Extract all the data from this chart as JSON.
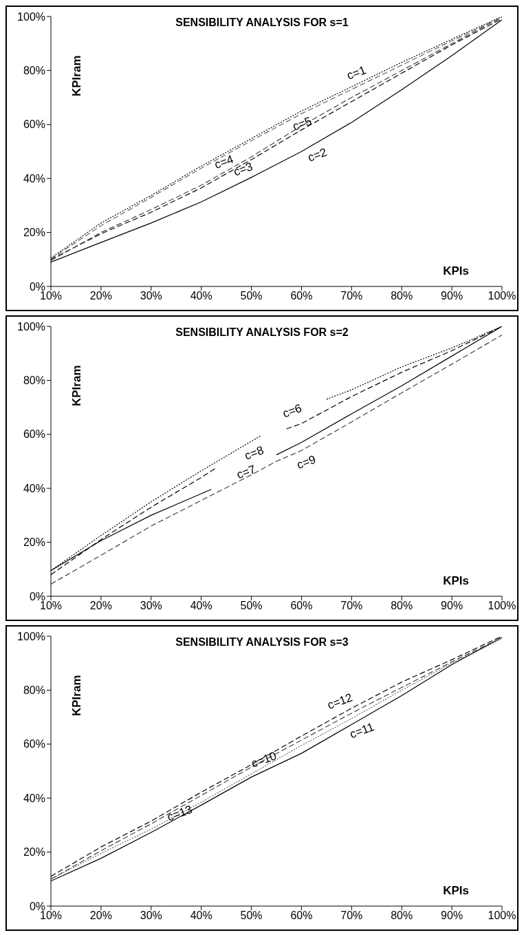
{
  "chart_data": [
    {
      "type": "line",
      "title": "SENSIBILITY ANALYSIS FOR s=1",
      "xlabel": "KPIs",
      "ylabel": "KPIram",
      "xlim": [
        10,
        100
      ],
      "ylim": [
        0,
        100
      ],
      "xticks": [
        {
          "value": 10,
          "label": "10%"
        },
        {
          "value": 20,
          "label": "20%"
        },
        {
          "value": 30,
          "label": "30%"
        },
        {
          "value": 40,
          "label": "40%"
        },
        {
          "value": 50,
          "label": "50%"
        },
        {
          "value": 60,
          "label": "60%"
        },
        {
          "value": 70,
          "label": "70%"
        },
        {
          "value": 80,
          "label": "80%"
        },
        {
          "value": 90,
          "label": "90%"
        },
        {
          "value": 100,
          "label": "100%"
        }
      ],
      "yticks": [
        {
          "value": 0,
          "label": "0%"
        },
        {
          "value": 20,
          "label": "20%"
        },
        {
          "value": 40,
          "label": "40%"
        },
        {
          "value": 60,
          "label": "60%"
        },
        {
          "value": 80,
          "label": "80%"
        },
        {
          "value": 100,
          "label": "100%"
        }
      ],
      "grid": false,
      "legend": false,
      "marker": "none",
      "series": [
        {
          "color": "#000000",
          "line_style": "dotted",
          "x": [
            10,
            20,
            30,
            40,
            50,
            60,
            70,
            80,
            90,
            100
          ],
          "values": [
            10.5,
            23.5,
            33.7,
            44.6,
            54.8,
            65,
            74,
            83,
            91.6,
            100
          ]
        },
        {
          "color": "#000000",
          "line_style": "solid",
          "x": [
            10,
            20,
            30,
            40,
            50,
            60,
            70,
            80,
            90,
            100
          ],
          "values": [
            9,
            16.3,
            23.5,
            31.3,
            40.4,
            50,
            60.8,
            72.9,
            85.5,
            98.8
          ]
        },
        {
          "color": "#000000",
          "line_style": "dashed",
          "x": [
            10,
            20,
            30,
            40,
            50,
            60,
            70,
            80,
            90,
            100
          ],
          "values": [
            10,
            19.5,
            27.5,
            36.5,
            47,
            58,
            68.5,
            79,
            89.5,
            99.2
          ]
        },
        {
          "color": "#666666",
          "line_style": "dashed",
          "x": [
            10,
            20,
            30,
            40,
            50,
            60,
            70,
            80,
            90,
            100
          ],
          "values": [
            10.2,
            22.5,
            33,
            43.8,
            54,
            64,
            73,
            82,
            91,
            99.7
          ]
        },
        {
          "color": "#444444",
          "line_style": "dashed",
          "x": [
            10,
            20,
            30,
            40,
            50,
            60,
            70,
            80,
            90,
            100
          ],
          "values": [
            9.6,
            20,
            28.5,
            37.5,
            48,
            59.5,
            70,
            80,
            90,
            99.8
          ]
        }
      ],
      "annotations": [
        {
          "text": "c=1",
          "x": 70,
          "y": 74
        },
        {
          "text": "c=2",
          "x": 60,
          "y": 50
        },
        {
          "text": "c=3",
          "x": 50,
          "y": 47
        },
        {
          "text": "c=4",
          "x": 40,
          "y": 43.8
        },
        {
          "text": "c=5",
          "x": 60,
          "y": 59.5
        }
      ]
    },
    {
      "type": "line",
      "title": "SENSIBILITY ANALYSIS FOR s=2",
      "xlabel": "KPIs",
      "ylabel": "KPIram",
      "xlim": [
        10,
        100
      ],
      "ylim": [
        0,
        100
      ],
      "xticks": [
        {
          "value": 10,
          "label": "10%"
        },
        {
          "value": 20,
          "label": "20%"
        },
        {
          "value": 30,
          "label": "30%"
        },
        {
          "value": 40,
          "label": "40%"
        },
        {
          "value": 50,
          "label": "50%"
        },
        {
          "value": 60,
          "label": "60%"
        },
        {
          "value": 70,
          "label": "70%"
        },
        {
          "value": 80,
          "label": "80%"
        },
        {
          "value": 90,
          "label": "90%"
        },
        {
          "value": 100,
          "label": "100%"
        }
      ],
      "yticks": [
        {
          "value": 0,
          "label": "0%"
        },
        {
          "value": 20,
          "label": "20%"
        },
        {
          "value": 40,
          "label": "40%"
        },
        {
          "value": 60,
          "label": "60%"
        },
        {
          "value": 80,
          "label": "80%"
        },
        {
          "value": 100,
          "label": "100%"
        }
      ],
      "grid": false,
      "legend": false,
      "marker": "none",
      "series": [
        {
          "color": "#000000",
          "line_style": "dotted",
          "x": [
            10,
            20,
            30,
            40,
            52,
            58,
            65,
            70,
            80,
            90,
            100
          ],
          "values": [
            9.5,
            22.5,
            35,
            46.5,
            59.6,
            null,
            73,
            76.5,
            85,
            92,
            100
          ]
        },
        {
          "color": "#000000",
          "line_style": "solid",
          "x": [
            10,
            20,
            30,
            40,
            42,
            48,
            55,
            60,
            70,
            80,
            90,
            100
          ],
          "values": [
            9.5,
            20.6,
            30,
            38,
            39.6,
            null,
            52.4,
            57,
            67.6,
            78,
            89,
            100
          ]
        },
        {
          "color": "#000000",
          "line_style": "dashed",
          "x": [
            10,
            20,
            30,
            40,
            43,
            50,
            57,
            60,
            70,
            80,
            90,
            100
          ],
          "values": [
            8,
            21,
            33,
            44,
            47.6,
            null,
            62,
            64,
            74,
            83,
            91,
            100
          ]
        },
        {
          "color": "#444444",
          "line_style": "dashed",
          "x": [
            10,
            20,
            30,
            40,
            50,
            55,
            60,
            70,
            80,
            90,
            100
          ],
          "values": [
            4.5,
            15.2,
            26,
            35.5,
            45,
            50,
            54,
            64.6,
            75.4,
            86,
            96.8
          ]
        }
      ],
      "annotations": [
        {
          "text": "c=6",
          "x": 65,
          "y": 73
        },
        {
          "text": "c=7",
          "x": 55,
          "y": 52.4
        },
        {
          "text": "c=8",
          "x": 57,
          "y": 62
        },
        {
          "text": "c=9",
          "x": 60,
          "y": 54
        }
      ]
    },
    {
      "type": "line",
      "title": "SENSIBILITY ANALYSIS FOR s=3",
      "xlabel": "KPIs",
      "ylabel": "KPIram",
      "xlim": [
        10,
        100
      ],
      "ylim": [
        0,
        100
      ],
      "xticks": [
        {
          "value": 10,
          "label": "10%"
        },
        {
          "value": 20,
          "label": "20%"
        },
        {
          "value": 30,
          "label": "30%"
        },
        {
          "value": 40,
          "label": "40%"
        },
        {
          "value": 50,
          "label": "50%"
        },
        {
          "value": 60,
          "label": "60%"
        },
        {
          "value": 70,
          "label": "70%"
        },
        {
          "value": 80,
          "label": "80%"
        },
        {
          "value": 90,
          "label": "90%"
        },
        {
          "value": 100,
          "label": "100%"
        }
      ],
      "yticks": [
        {
          "value": 0,
          "label": "0%"
        },
        {
          "value": 20,
          "label": "20%"
        },
        {
          "value": 40,
          "label": "40%"
        },
        {
          "value": 60,
          "label": "60%"
        },
        {
          "value": 80,
          "label": "80%"
        },
        {
          "value": 100,
          "label": "100%"
        }
      ],
      "grid": false,
      "legend": false,
      "marker": "none",
      "series": [
        {
          "color": "#666666",
          "line_style": "dotted",
          "x": [
            10,
            20,
            30,
            40,
            50,
            60,
            70,
            80,
            90,
            100
          ],
          "values": [
            10,
            19.5,
            28.5,
            38.5,
            49,
            59.5,
            69.5,
            80,
            90,
            99
          ]
        },
        {
          "color": "#000000",
          "line_style": "solid",
          "x": [
            10,
            20,
            30,
            40,
            50,
            60,
            70,
            80,
            90,
            100
          ],
          "values": [
            9.3,
            17.7,
            27.3,
            37.4,
            47.8,
            56.6,
            67.3,
            78,
            89.5,
            99.6
          ]
        },
        {
          "color": "#000000",
          "line_style": "dashed",
          "x": [
            10,
            20,
            30,
            40,
            50,
            60,
            70,
            80,
            90,
            100
          ],
          "values": [
            11,
            21.9,
            31.5,
            42.2,
            52.4,
            63,
            73.3,
            83,
            91.3,
            100
          ]
        },
        {
          "color": "#444444",
          "line_style": "dashed",
          "x": [
            10,
            20,
            30,
            40,
            50,
            60,
            70,
            80,
            90,
            100
          ],
          "values": [
            10,
            20.5,
            30.5,
            41,
            51.5,
            61.5,
            71.5,
            81,
            90.5,
            99.5
          ]
        }
      ],
      "annotations": [
        {
          "text": "c=10",
          "x": 52.5,
          "y": 54.2
        },
        {
          "text": "c=11",
          "x": 70,
          "y": 67.3
        },
        {
          "text": "c=12",
          "x": 70,
          "y": 73.3
        },
        {
          "text": "c=13",
          "x": 35.7,
          "y": 34.4
        }
      ]
    }
  ]
}
